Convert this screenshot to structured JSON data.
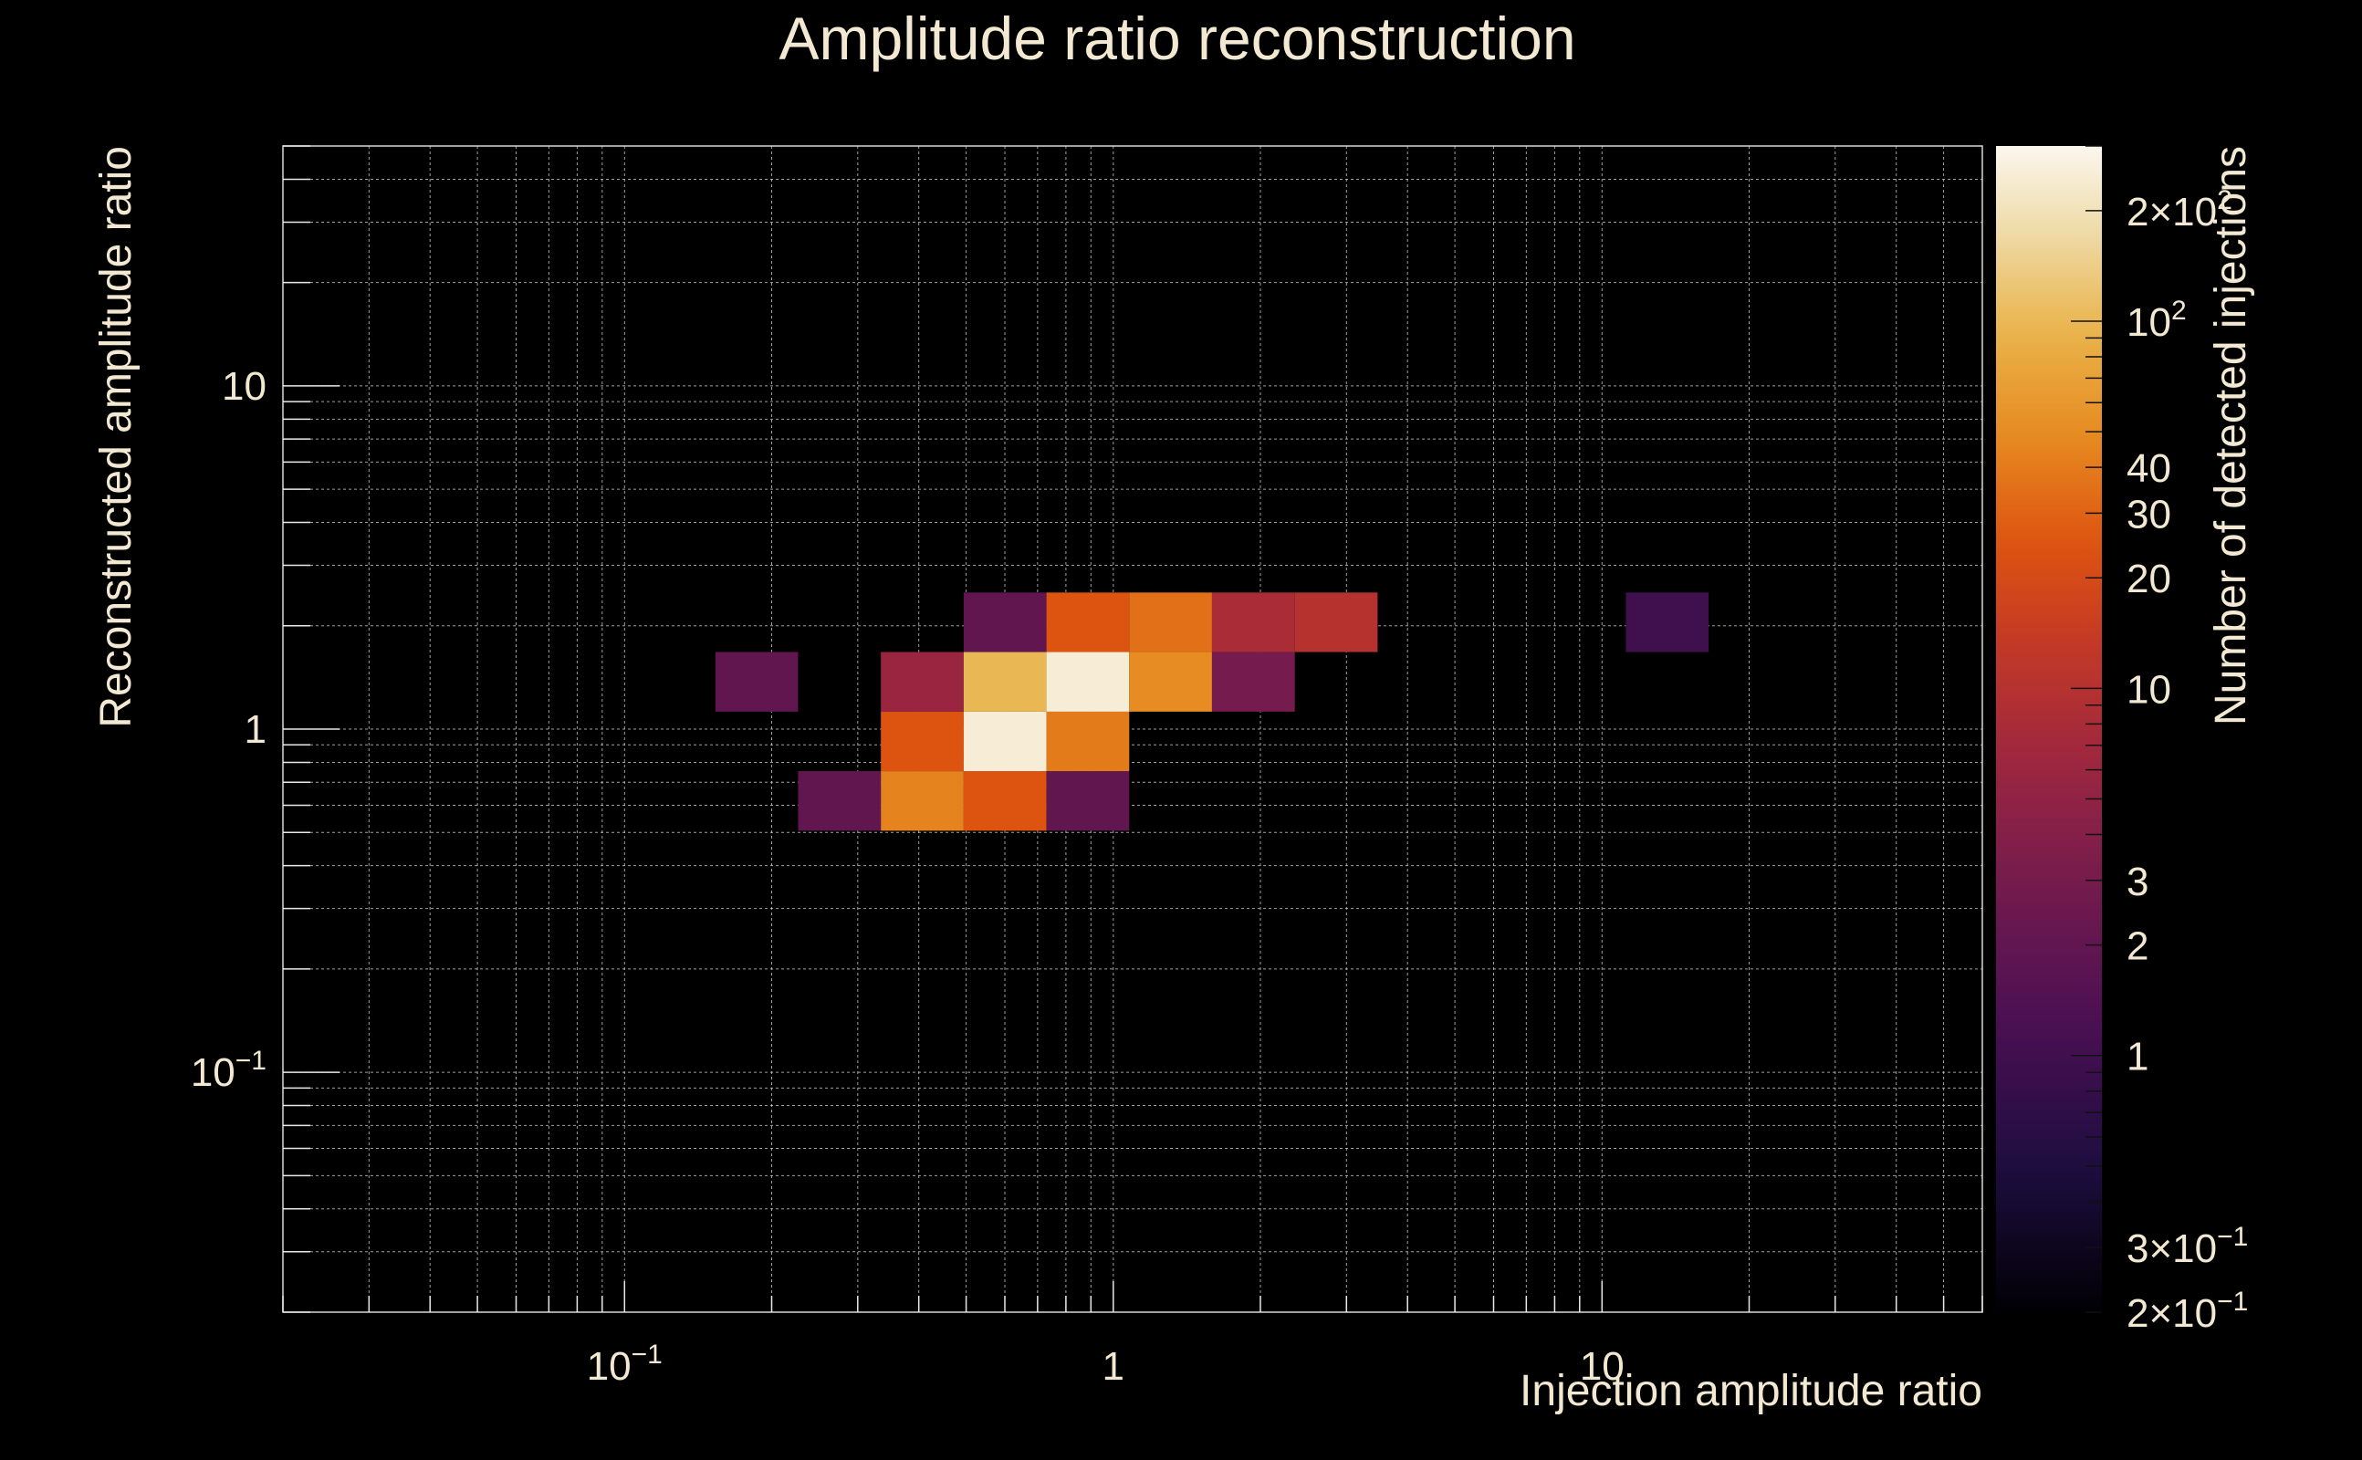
{
  "chart_data": {
    "type": "heatmap",
    "title": "Amplitude ratio reconstruction",
    "xlabel": "Injection amplitude ratio",
    "ylabel": "Reconstructed amplitude ratio",
    "zlabel": "Number of detected injections",
    "xscale": "log",
    "yscale": "log",
    "zscale": "log",
    "xlim": [
      0.02,
      60
    ],
    "ylim": [
      0.02,
      50
    ],
    "zlim": [
      0.2,
      300
    ],
    "x_ticks": [
      {
        "value": 0.1,
        "mant": "10",
        "exp": "−1"
      },
      {
        "value": 1,
        "mant": "1",
        "exp": ""
      },
      {
        "value": 10,
        "mant": "10",
        "exp": ""
      }
    ],
    "y_ticks": [
      {
        "value": 0.1,
        "mant": "10",
        "exp": "−1"
      },
      {
        "value": 1,
        "mant": "1",
        "exp": ""
      },
      {
        "value": 10,
        "mant": "10",
        "exp": ""
      }
    ],
    "z_ticks": [
      {
        "value": 0.2,
        "mant": "2×10",
        "exp": "−1"
      },
      {
        "value": 0.3,
        "mant": "3×10",
        "exp": "−1"
      },
      {
        "value": 1,
        "mant": "1",
        "exp": ""
      },
      {
        "value": 2,
        "mant": "2",
        "exp": ""
      },
      {
        "value": 3,
        "mant": "3",
        "exp": ""
      },
      {
        "value": 10,
        "mant": "10",
        "exp": ""
      },
      {
        "value": 20,
        "mant": "20",
        "exp": ""
      },
      {
        "value": 30,
        "mant": "30",
        "exp": ""
      },
      {
        "value": 40,
        "mant": "40",
        "exp": ""
      },
      {
        "value": 100,
        "mant": "10",
        "exp": "2"
      },
      {
        "value": 200,
        "mant": "2×10",
        "exp": "2"
      }
    ],
    "x_bin_edges": [
      0.0218,
      0.0322,
      0.0476,
      0.0703,
      0.1038,
      0.1534,
      0.2265,
      0.3346,
      0.4942,
      0.7299,
      1.078,
      1.592,
      2.352,
      3.474,
      5.131,
      7.578,
      11.19,
      16.53,
      24.42,
      36.07,
      53.27
    ],
    "y_bin_edges": [
      0.0207,
      0.0309,
      0.046,
      0.0686,
      0.1023,
      0.1525,
      0.2274,
      0.3391,
      0.5057,
      0.7541,
      1.124,
      1.677,
      2.5,
      3.728,
      5.56,
      8.291,
      12.36,
      18.44,
      27.5,
      41.0
    ],
    "cells": [
      {
        "ix": 5,
        "iy": 10,
        "count": 2
      },
      {
        "ix": 6,
        "iy": 8,
        "count": 2
      },
      {
        "ix": 7,
        "iy": 8,
        "count": 45
      },
      {
        "ix": 8,
        "iy": 8,
        "count": 25
      },
      {
        "ix": 9,
        "iy": 8,
        "count": 2
      },
      {
        "ix": 7,
        "iy": 9,
        "count": 25
      },
      {
        "ix": 8,
        "iy": 9,
        "count": 250
      },
      {
        "ix": 9,
        "iy": 9,
        "count": 40
      },
      {
        "ix": 7,
        "iy": 10,
        "count": 6
      },
      {
        "ix": 8,
        "iy": 10,
        "count": 100
      },
      {
        "ix": 9,
        "iy": 10,
        "count": 250
      },
      {
        "ix": 10,
        "iy": 10,
        "count": 50
      },
      {
        "ix": 11,
        "iy": 10,
        "count": 3
      },
      {
        "ix": 8,
        "iy": 11,
        "count": 2
      },
      {
        "ix": 9,
        "iy": 11,
        "count": 25
      },
      {
        "ix": 10,
        "iy": 11,
        "count": 35
      },
      {
        "ix": 11,
        "iy": 11,
        "count": 8
      },
      {
        "ix": 12,
        "iy": 11,
        "count": 10
      },
      {
        "ix": 16,
        "iy": 11,
        "count": 1
      }
    ],
    "palette": [
      "#000004",
      "#1b0c41",
      "#4a0c6b",
      "#781c6d",
      "#a52c60",
      "#cf4446",
      "#ed6925",
      "#fb9b06",
      "#f7d13d",
      "#fcffa4"
    ],
    "palette_stops": [
      {
        "t": 0.0,
        "color": "#000004"
      },
      {
        "t": 0.12,
        "color": "#1c0d3e"
      },
      {
        "t": 0.25,
        "color": "#4b1053"
      },
      {
        "t": 0.36,
        "color": "#711a4e"
      },
      {
        "t": 0.47,
        "color": "#9c2640"
      },
      {
        "t": 0.58,
        "color": "#c63a24"
      },
      {
        "t": 0.66,
        "color": "#dd5410"
      },
      {
        "t": 0.75,
        "color": "#e68a20"
      },
      {
        "t": 0.84,
        "color": "#e9b34a"
      },
      {
        "t": 0.93,
        "color": "#efdcab"
      },
      {
        "t": 1.0,
        "color": "#fbf7ee"
      }
    ]
  }
}
